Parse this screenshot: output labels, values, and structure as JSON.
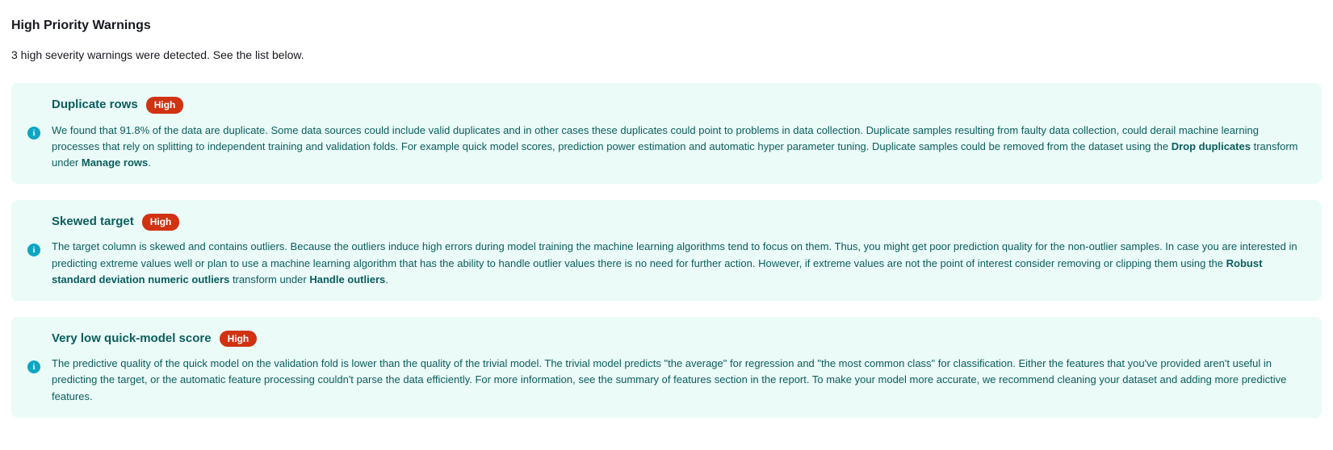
{
  "colors": {
    "card_background": "#eafbf8",
    "badge_background": "#d13212",
    "text_dark": "#16191f",
    "text_teal": "#0b5d5d",
    "info_icon": "#0ea5c4"
  },
  "header": {
    "title": "High Priority Warnings",
    "subtitle": "3 high severity warnings were detected. See the list below."
  },
  "warnings": [
    {
      "title": "Duplicate rows",
      "severity": "High",
      "description": "We found that 91.8% of the data are duplicate. Some data sources could include valid duplicates and in other cases these duplicates could point to problems in data collection. Duplicate samples resulting from faulty data collection, could derail machine learning processes that rely on splitting to independent training and validation folds. For example quick model scores, prediction power estimation and automatic hyper parameter tuning. Duplicate samples could be removed from the dataset using the ",
      "bold1": "Drop duplicates",
      "mid1": " transform under ",
      "bold2": "Manage rows",
      "tail": "."
    },
    {
      "title": "Skewed target",
      "severity": "High",
      "description": "The target column is skewed and contains outliers. Because the outliers induce high errors during model training the machine learning algorithms tend to focus on them. Thus, you might get poor prediction quality for the non-outlier samples. In case you are interested in predicting extreme values well or plan to use a machine learning algorithm that has the ability to handle outlier values there is no need for further action. However, if extreme values are not the point of interest consider removing or clipping them using the ",
      "bold1": "Robust standard deviation numeric outliers",
      "mid1": " transform under ",
      "bold2": "Handle outliers",
      "tail": "."
    },
    {
      "title": "Very low quick-model score",
      "severity": "High",
      "description": "The predictive quality of the quick model on the validation fold is lower than the quality of the trivial model. The trivial model predicts \"the average\" for regression and \"the most common class\" for classification. Either the features that you've provided aren't useful in predicting the target, or the automatic feature processing couldn't parse the data efficiently. For more information, see the summary of features section in the report. To make your model more accurate, we recommend cleaning your dataset and adding more predictive features.",
      "bold1": "",
      "mid1": "",
      "bold2": "",
      "tail": ""
    }
  ]
}
